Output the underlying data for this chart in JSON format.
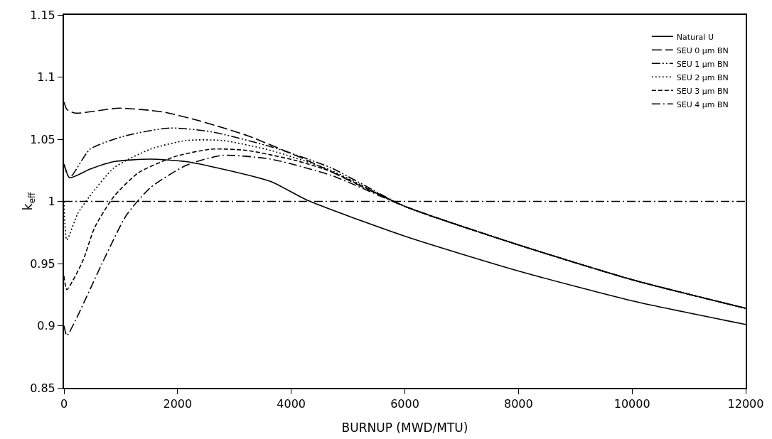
{
  "chart_data": {
    "type": "line",
    "xlabel": "BURNUP (MWD/MTU)",
    "ylabel": "k$_{eff}$",
    "xlim": [
      0,
      12000
    ],
    "xticks": [
      0,
      2000,
      4000,
      6000,
      8000,
      10000,
      12000
    ],
    "ylim": [
      0.85,
      1.15
    ],
    "yticks": [
      0.85,
      0.9,
      0.95,
      1,
      1.05,
      1.1,
      1.15
    ],
    "grid": false,
    "legend": "top right",
    "marker": "none",
    "ref_lines": [
      {
        "axis": "y",
        "value": 1,
        "line_style": "dash-dot"
      }
    ],
    "series": [
      {
        "name": "Natural U",
        "color": "#000000",
        "line_style": "solid",
        "x": [
          0,
          100,
          460,
          880,
          1520,
          2150,
          2790,
          3640,
          4280,
          6000,
          8000,
          10000,
          12000
        ],
        "values": [
          1.03,
          1.019,
          1.026,
          1.032,
          1.034,
          1.032,
          1.026,
          1.016,
          1.001,
          0.972,
          0.944,
          0.92,
          0.901
        ]
      },
      {
        "name": "SEU 0 μm BN",
        "color": "#000000",
        "line_style": "long-dash",
        "x": [
          0,
          50,
          200,
          970,
          1730,
          2370,
          3220,
          4280,
          6000,
          8000,
          10000,
          12000
        ],
        "values": [
          1.08,
          1.074,
          1.071,
          1.075,
          1.072,
          1.065,
          1.053,
          1.033,
          0.996,
          0.965,
          0.937,
          0.914
        ]
      },
      {
        "name": "SEU 1 μm BN",
        "color": "#000000",
        "line_style": "dash-dot-dot",
        "x": [
          0,
          100,
          460,
          1100,
          1860,
          2590,
          3640,
          4700,
          6000,
          8000,
          10000,
          12000
        ],
        "values": [
          1.03,
          1.019,
          1.042,
          1.053,
          1.059,
          1.056,
          1.044,
          1.027,
          0.996,
          0.965,
          0.937,
          0.914
        ]
      },
      {
        "name": "SEU 2 μm BN",
        "color": "#000000",
        "line_style": "dotted",
        "x": [
          0,
          50,
          240,
          450,
          880,
          1520,
          2150,
          2790,
          3640,
          4700,
          6000,
          8000,
          10000,
          12000
        ],
        "values": [
          1.0,
          0.969,
          0.99,
          1.004,
          1.027,
          1.042,
          1.049,
          1.049,
          1.041,
          1.025,
          0.996,
          0.965,
          0.937,
          0.914
        ]
      },
      {
        "name": "SEU 3 μm BN",
        "color": "#000000",
        "line_style": "dashed",
        "x": [
          0,
          50,
          330,
          540,
          880,
          1310,
          1950,
          2590,
          3220,
          4070,
          4700,
          6000,
          8000,
          10000,
          12000
        ],
        "values": [
          0.94,
          0.929,
          0.952,
          0.979,
          1.004,
          1.023,
          1.036,
          1.042,
          1.041,
          1.033,
          1.024,
          0.996,
          0.965,
          0.937,
          0.914
        ]
      },
      {
        "name": "SEU 4 μm BN",
        "color": "#000000",
        "line_style": "dash-dot",
        "x": [
          0,
          50,
          200,
          670,
          1100,
          1520,
          2150,
          2790,
          3640,
          4700,
          6000,
          8000,
          10000,
          12000
        ],
        "values": [
          0.9,
          0.892,
          0.904,
          0.95,
          0.989,
          1.011,
          1.029,
          1.037,
          1.034,
          1.021,
          0.996,
          0.965,
          0.937,
          0.914
        ]
      }
    ]
  }
}
